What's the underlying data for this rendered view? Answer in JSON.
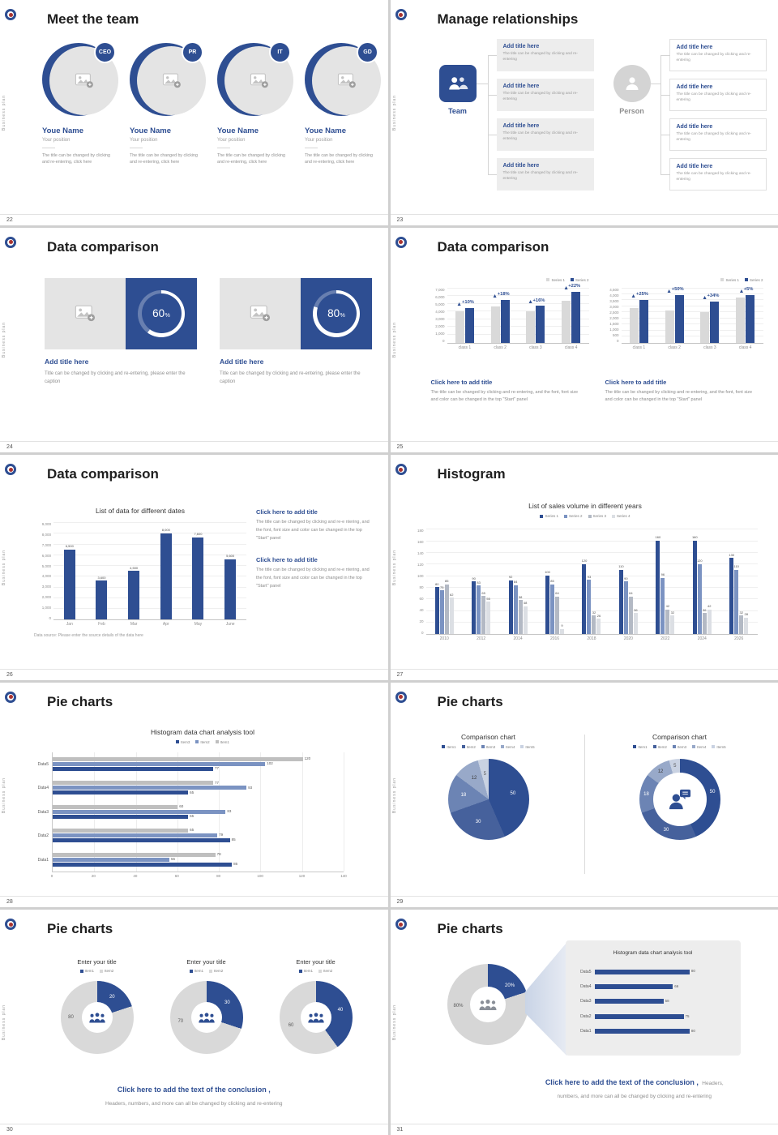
{
  "deck": {
    "sidebar_text": "Business plan",
    "accent": "#2e4e92"
  },
  "s22": {
    "number": "22",
    "title": "Meet the team",
    "members": [
      {
        "badge": "CEO",
        "name": "Youe Name",
        "position": "Your position",
        "desc": "The title can be changed by clicking and re-entering, click here"
      },
      {
        "badge": "PR",
        "name": "Youe Name",
        "position": "Your position",
        "desc": "The title can be changed by clicking and re-entering, click here"
      },
      {
        "badge": "IT",
        "name": "Youe Name",
        "position": "Your position",
        "desc": "The title can be changed by clicking and re-entering, click here"
      },
      {
        "badge": "GD",
        "name": "Youe Name",
        "position": "Your position",
        "desc": "The title can be changed by clicking and re-entering, click here"
      }
    ]
  },
  "s23": {
    "number": "23",
    "title": "Manage relationships",
    "team_label": "Team",
    "person_label": "Person",
    "box_title": "Add title here",
    "box_text": "The title can be changed by clicking and re-entering"
  },
  "s24": {
    "number": "24",
    "title": "Data comparison",
    "cards": [
      {
        "title": "Add title here",
        "caption": "Title can be changed by clicking and re-entering, please enter the caption",
        "ring": {
          "type": "ring",
          "value": 60,
          "label": "60",
          "unit": "%"
        }
      },
      {
        "title": "Add title here",
        "caption": "Title can be changed by clicking and re-entering, please enter the caption",
        "ring": {
          "type": "ring",
          "value": 80,
          "label": "80",
          "unit": "%"
        }
      }
    ]
  },
  "s25": {
    "number": "25",
    "title": "Data comparison",
    "legend": [
      {
        "label": "Series 1",
        "color": "#d9d9d9"
      },
      {
        "label": "Series 2",
        "color": "#2e4e92"
      }
    ],
    "cta_title": "Click here to add title",
    "cta_text": "The title can be changed by clicking and re-entering, and the font, font size and color can be changed in the top \"Start\" panel",
    "chart_left": {
      "type": "vbar",
      "ymax": 7000,
      "yticks": [
        "7,000",
        "6,000",
        "5,000",
        "4,000",
        "3,000",
        "2,000",
        "1,000",
        "0"
      ],
      "categories": [
        "class 1",
        "class 2",
        "class 3",
        "class 4"
      ],
      "series": [
        {
          "name": "Series 1",
          "color": "#d9d9d9",
          "values": [
            4000,
            4600,
            4000,
            5300
          ]
        },
        {
          "name": "Series 2",
          "color": "#2e4e92",
          "values": [
            4400,
            5400,
            4650,
            6450
          ]
        }
      ],
      "annotations": [
        "+10%",
        "+18%",
        "+16%",
        "+22%"
      ]
    },
    "chart_right": {
      "type": "vbar",
      "ymax": 4500,
      "yticks": [
        "4,500",
        "4,000",
        "3,500",
        "3,000",
        "2,500",
        "2,000",
        "1,500",
        "1,000",
        "500",
        "0"
      ],
      "categories": [
        "class 1",
        "class 2",
        "class 3",
        "class 4"
      ],
      "series": [
        {
          "name": "Series 1",
          "color": "#d9d9d9",
          "values": [
            2800,
            2600,
            2500,
            3700
          ]
        },
        {
          "name": "Series 2",
          "color": "#2e4e92",
          "values": [
            3500,
            3900,
            3350,
            3900
          ]
        }
      ],
      "annotations": [
        "+25%",
        "+50%",
        "+34%",
        "+5%"
      ]
    }
  },
  "s26": {
    "number": "26",
    "title": "Data comparison",
    "chart": {
      "type": "vbar",
      "title": "List of data for different dates",
      "ymax": 9000,
      "yticks": [
        "9,000",
        "8,000",
        "7,000",
        "6,000",
        "5,000",
        "4,000",
        "3,000",
        "2,000",
        "1,000",
        "0"
      ],
      "categories": [
        "Jan",
        "Feb",
        "Mar",
        "Apr",
        "May",
        "June"
      ],
      "series": [
        {
          "name": "Data",
          "color": "#2e4e92",
          "values": [
            6500,
            3600,
            4500,
            8000,
            7600,
            5600
          ],
          "labels": [
            "6,500",
            "3,600",
            "4,500",
            "8,000",
            "7,600",
            "5,600"
          ]
        }
      ]
    },
    "source": "Data source: Please enter the source details of the data here",
    "cta_title": "Click here to add title",
    "cta_text": "The title can be changed by clicking and re-e ntering, and the font, font size and color can be changed in the top \"Start\" panel"
  },
  "s27": {
    "number": "27",
    "title": "Histogram",
    "chart": {
      "type": "vbar",
      "title": "List of sales volume in different years",
      "ymax": 180,
      "show_values": true,
      "yticks": [
        "180",
        "160",
        "140",
        "120",
        "100",
        "80",
        "60",
        "40",
        "20",
        "0"
      ],
      "categories": [
        "2010",
        "2012",
        "2014",
        "2016",
        "2018",
        "2020",
        "2022",
        "2024",
        "2026"
      ],
      "legend": [
        {
          "label": "Series 1",
          "color": "#2e4e92"
        },
        {
          "label": "Series 2",
          "color": "#7b93c2"
        },
        {
          "label": "Series 3",
          "color": "#b3b9c4"
        },
        {
          "label": "Series 4",
          "color": "#dcdfe4"
        }
      ],
      "series": [
        {
          "name": "Series 1",
          "color": "#2e4e92",
          "values": [
            80,
            90,
            92,
            100,
            120,
            110,
            160,
            160,
            130
          ]
        },
        {
          "name": "Series 2",
          "color": "#7b93c2",
          "values": [
            75,
            83,
            84,
            85,
            93,
            90,
            96,
            120,
            110
          ]
        },
        {
          "name": "Series 3",
          "color": "#b3b9c4",
          "values": [
            85,
            65,
            58,
            64,
            32,
            64,
            42,
            36,
            32
          ]
        },
        {
          "name": "Series 4",
          "color": "#dcdfe4",
          "values": [
            62,
            55,
            48,
            9,
            26,
            36,
            32,
            42,
            28
          ]
        }
      ]
    }
  },
  "s28": {
    "number": "28",
    "title": "Pie charts",
    "chart": {
      "type": "hbar",
      "title": "Histogram data chart analysis tool",
      "xmax": 140,
      "legend": [
        {
          "label": "Item3",
          "color": "#2e4e92"
        },
        {
          "label": "Item2",
          "color": "#7b93c2"
        },
        {
          "label": "Item1",
          "color": "#bfbfbf"
        }
      ],
      "xticks": [
        "0",
        "20",
        "40",
        "60",
        "80",
        "100",
        "120",
        "140"
      ],
      "rows": [
        {
          "label": "Data5",
          "bars": [
            {
              "color": "#bfbfbf",
              "value": 120
            },
            {
              "color": "#7b93c2",
              "value": 102
            },
            {
              "color": "#2e4e92",
              "value": 77
            }
          ]
        },
        {
          "label": "Data4",
          "bars": [
            {
              "color": "#bfbfbf",
              "value": 77
            },
            {
              "color": "#7b93c2",
              "value": 93
            },
            {
              "color": "#2e4e92",
              "value": 65
            }
          ]
        },
        {
          "label": "Data3",
          "bars": [
            {
              "color": "#bfbfbf",
              "value": 60
            },
            {
              "color": "#7b93c2",
              "value": 83
            },
            {
              "color": "#2e4e92",
              "value": 65
            }
          ]
        },
        {
          "label": "Data2",
          "bars": [
            {
              "color": "#bfbfbf",
              "value": 65
            },
            {
              "color": "#7b93c2",
              "value": 79
            },
            {
              "color": "#2e4e92",
              "value": 85
            }
          ]
        },
        {
          "label": "Data1",
          "bars": [
            {
              "color": "#bfbfbf",
              "value": 78
            },
            {
              "color": "#7b93c2",
              "value": 56
            },
            {
              "color": "#2e4e92",
              "value": 86
            }
          ]
        }
      ]
    }
  },
  "s29": {
    "number": "29",
    "title": "Pie charts",
    "left": {
      "title": "Comparison chart",
      "legend": [
        {
          "label": "Item1",
          "color": "#2e4e92"
        },
        {
          "label": "Item2",
          "color": "#46619c"
        },
        {
          "label": "Item3",
          "color": "#6c84b4"
        },
        {
          "label": "Item4",
          "color": "#98a9c9"
        },
        {
          "label": "Item5",
          "color": "#c9d2e2"
        }
      ],
      "chart": {
        "type": "pie",
        "size": 100,
        "slices": [
          {
            "value": 50,
            "color": "#2e4e92",
            "label": "50",
            "labelColor": "#ffffff"
          },
          {
            "value": 30,
            "color": "#46619c",
            "label": "30",
            "labelColor": "#ffffff"
          },
          {
            "value": 18,
            "color": "#6c84b4",
            "label": "18",
            "labelColor": "#ffffff"
          },
          {
            "value": 12,
            "color": "#98a9c9",
            "label": "12",
            "labelColor": "#3c3c3c"
          },
          {
            "value": 5,
            "color": "#c9d2e2",
            "label": "5",
            "labelColor": "#5a5a5a"
          }
        ]
      }
    },
    "right": {
      "title": "Comparison chart",
      "legend": [
        {
          "label": "Item1",
          "color": "#2e4e92"
        },
        {
          "label": "Item2",
          "color": "#46619c"
        },
        {
          "label": "Item3",
          "color": "#6c84b4"
        },
        {
          "label": "Item4",
          "color": "#98a9c9"
        },
        {
          "label": "Item5",
          "color": "#c9d2e2"
        }
      ],
      "chart": {
        "type": "donut",
        "size": 100,
        "thickness": 17,
        "slices": [
          {
            "value": 50,
            "color": "#2e4e92",
            "label": "50",
            "labelColor": "#ffffff"
          },
          {
            "value": 30,
            "color": "#46619c",
            "label": "30",
            "labelColor": "#ffffff"
          },
          {
            "value": 18,
            "color": "#6c84b4",
            "label": "18",
            "labelColor": "#ffffff"
          },
          {
            "value": 12,
            "color": "#98a9c9",
            "label": "12",
            "labelColor": "#3c3c3c"
          },
          {
            "value": 5,
            "color": "#c9d2e2",
            "label": "5",
            "labelColor": "#5a5a5a"
          }
        ]
      }
    }
  },
  "s30": {
    "number": "30",
    "title": "Pie charts",
    "charts": [
      {
        "title": "Enter your title",
        "legend": [
          {
            "label": "Item1",
            "color": "#2e4e92"
          },
          {
            "label": "Item2",
            "color": "#d9d9d9"
          }
        ],
        "chart": {
          "type": "donut",
          "size": 90,
          "thickness": 26,
          "slices": [
            {
              "value": 20,
              "color": "#2e4e92",
              "label": "20",
              "labelColor": "#ffffff"
            },
            {
              "value": 80,
              "color": "#d9d9d9",
              "label": "80",
              "labelColor": "#595959",
              "labelAngle": 270
            }
          ]
        }
      },
      {
        "title": "Enter your title",
        "legend": [
          {
            "label": "Item1",
            "color": "#2e4e92"
          },
          {
            "label": "Item2",
            "color": "#d9d9d9"
          }
        ],
        "chart": {
          "type": "donut",
          "size": 90,
          "thickness": 26,
          "slices": [
            {
              "value": 30,
              "color": "#2e4e92",
              "label": "30",
              "labelColor": "#ffffff"
            },
            {
              "value": 70,
              "color": "#d9d9d9",
              "label": "70",
              "labelColor": "#595959",
              "labelAngle": 262
            }
          ]
        }
      },
      {
        "title": "Enter your title",
        "legend": [
          {
            "label": "Item1",
            "color": "#2e4e92"
          },
          {
            "label": "Item2",
            "color": "#d9d9d9"
          }
        ],
        "chart": {
          "type": "donut",
          "size": 90,
          "thickness": 26,
          "slices": [
            {
              "value": 40,
              "color": "#2e4e92",
              "label": "40",
              "labelColor": "#ffffff"
            },
            {
              "value": 60,
              "color": "#d9d9d9",
              "label": "60",
              "labelColor": "#595959",
              "labelAngle": 252
            }
          ]
        }
      }
    ],
    "conclusion_bold": "Click here to add the text of the conclusion ,",
    "conclusion_text": "Headers, numbers, and more can all be changed by clicking and re-entering"
  },
  "s31": {
    "number": "31",
    "title": "Pie charts",
    "donut": {
      "type": "donut",
      "size": 100,
      "thickness": 28,
      "slices": [
        {
          "value": 20,
          "color": "#2e4e92",
          "label": "20%",
          "labelColor": "#ffffff",
          "labelAngle": 50
        },
        {
          "value": 80,
          "color": "#d6d6d6",
          "label": "80%",
          "labelColor": "#595959",
          "labelAngle": 268
        }
      ]
    },
    "panel": {
      "title": "Histogram data chart analysis tool"
    },
    "panelchart": {
      "type": "hbar",
      "xmax": 90,
      "rows": [
        {
          "label": "Data5",
          "bars": [
            {
              "color": "#2e4e92",
              "value": 80
            }
          ]
        },
        {
          "label": "Data4",
          "bars": [
            {
              "color": "#2e4e92",
              "value": 66
            }
          ]
        },
        {
          "label": "Data3",
          "bars": [
            {
              "color": "#2e4e92",
              "value": 58
            }
          ]
        },
        {
          "label": "Data2",
          "bars": [
            {
              "color": "#2e4e92",
              "value": 75
            }
          ]
        },
        {
          "label": "Data1",
          "bars": [
            {
              "color": "#2e4e92",
              "value": 80
            }
          ]
        }
      ]
    },
    "conclusion_bold": "Click here to add the text of the conclusion ,",
    "conclusion_rest": "Headers,",
    "conclusion_text": "numbers, and more can all be changed by clicking and re-entering"
  }
}
